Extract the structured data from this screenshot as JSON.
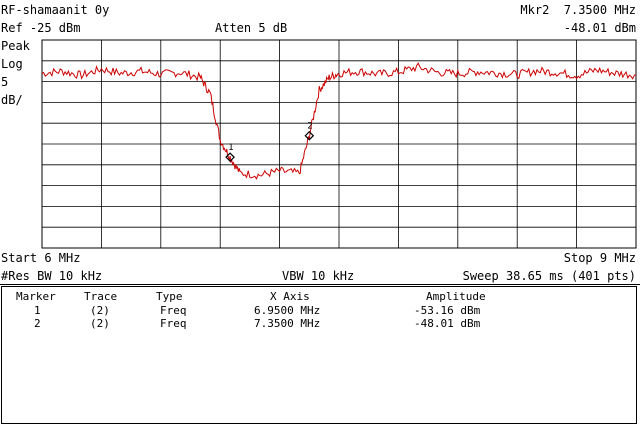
{
  "header": {
    "title": "RF-shamaanit 0y",
    "ref": "Ref -25 dBm",
    "atten": "Atten 5 dB",
    "marker_active": "Mkr2  7.3500 MHz",
    "marker_active_amp": "-48.01 dBm"
  },
  "scale": {
    "mode": "Peak",
    "type": "Log",
    "value": "5",
    "unit": "dB/"
  },
  "footer": {
    "start": "Start 6 MHz",
    "stop": "Stop 9 MHz",
    "res_bw": "#Res BW 10 kHz",
    "vbw": "VBW 10 kHz",
    "sweep": "Sweep 38.65 ms (401 pts)"
  },
  "markers_table": {
    "headers": [
      "Marker",
      "Trace",
      "Type",
      "X Axis",
      "Amplitude"
    ],
    "rows": [
      [
        "1",
        "(2)",
        "Freq",
        "6.9500 MHz",
        "-53.16 dBm"
      ],
      [
        "2",
        "(2)",
        "Freq",
        "7.3500 MHz",
        "-48.01 dBm"
      ]
    ]
  },
  "chart_data": {
    "type": "line",
    "x_unit": "MHz",
    "y_unit": "dBm",
    "xlim": [
      6,
      9
    ],
    "ylim": [
      -75,
      -25
    ],
    "grid": true,
    "series": [
      {
        "color": "#cc0000",
        "x": [
          6.0,
          6.1,
          6.2,
          6.3,
          6.4,
          6.5,
          6.6,
          6.7,
          6.8,
          6.85,
          6.9,
          6.95,
          7.0,
          7.1,
          7.2,
          7.3,
          7.35,
          7.4,
          7.45,
          7.5,
          7.6,
          7.7,
          7.8,
          7.9,
          8.0,
          8.1,
          8.2,
          8.3,
          8.4,
          8.5,
          8.6,
          8.7,
          8.8,
          8.9,
          9.0
        ],
        "y": [
          -33,
          -32.5,
          -33.5,
          -32,
          -33,
          -32.5,
          -33.2,
          -32.8,
          -34,
          -38,
          -49,
          -53.16,
          -57,
          -57.5,
          -56.5,
          -57,
          -48.01,
          -37,
          -34,
          -33,
          -32.5,
          -33.2,
          -32.7,
          -31.5,
          -32.8,
          -33.1,
          -32.6,
          -32.9,
          -33.3,
          -32.4,
          -32.8,
          -33.5,
          -32.2,
          -33,
          -33.4
        ]
      }
    ],
    "markers": [
      {
        "label": "1",
        "x": 6.95,
        "y": -53.16
      },
      {
        "label": "2",
        "x": 7.35,
        "y": -48.01
      }
    ]
  }
}
